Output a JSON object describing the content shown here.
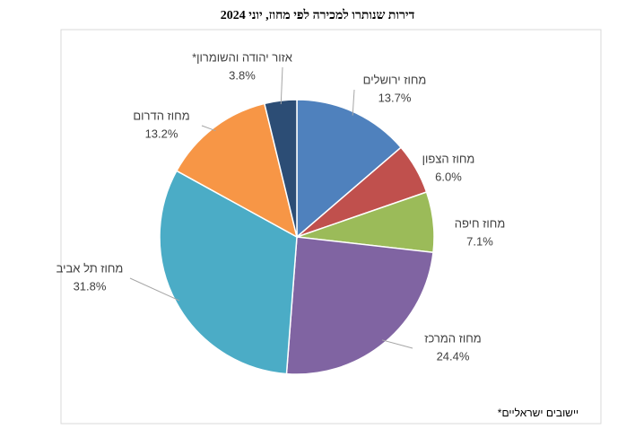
{
  "chart_data": {
    "type": "pie",
    "title": "דירות שנותרו למכירה לפי מחוז, יוני 2024",
    "categories": [
      "מחוז ירושלים",
      "מחוז הצפון",
      "מחוז חיפה",
      "מחוז המרכז",
      "מחוז תל אביב",
      "מחוז הדרום",
      "אזור יהודה והשומרון*"
    ],
    "values": [
      13.7,
      6.0,
      7.1,
      24.4,
      31.8,
      13.2,
      3.8
    ],
    "value_labels": [
      "13.7%",
      "6.0%",
      "7.1%",
      "24.4%",
      "31.8%",
      "13.2%",
      "3.8%"
    ],
    "colors": [
      "#4f81bd",
      "#c0504d",
      "#9bbb59",
      "#8064a2",
      "#4bacc6",
      "#f79646",
      "#2c4d75"
    ],
    "footnote": "יישובים ישראליים*"
  }
}
